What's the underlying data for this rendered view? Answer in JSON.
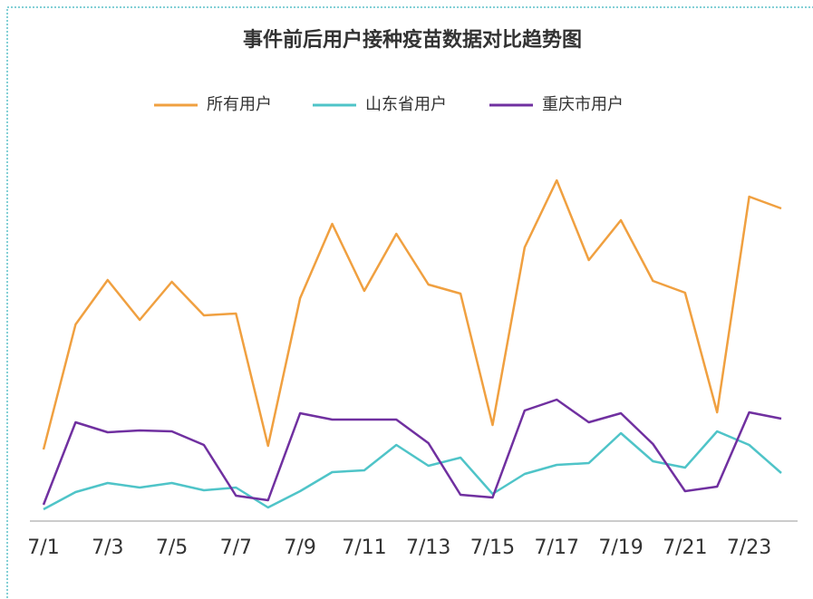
{
  "chart_data": {
    "type": "line",
    "title": "事件前后用户接种疫苗数据对比趋势图",
    "categories": [
      "7/1",
      null,
      "7/3",
      null,
      "7/5",
      null,
      "7/7",
      null,
      "7/9",
      null,
      "7/11",
      null,
      "7/13",
      null,
      "7/15",
      null,
      "7/17",
      null,
      "7/19",
      null,
      "7/21",
      null,
      "7/23",
      null
    ],
    "series": [
      {
        "name": "所有用户",
        "color": "#f0a040",
        "values": [
          79,
          217,
          266,
          222,
          264,
          227,
          229,
          83,
          246,
          328,
          254,
          317,
          261,
          251,
          106,
          302,
          376,
          288,
          332,
          265,
          252,
          120,
          358,
          345
        ]
      },
      {
        "name": "山东省用户",
        "color": "#4fc4c8",
        "values": [
          13,
          32,
          42,
          37,
          42,
          34,
          37,
          15,
          33,
          54,
          56,
          84,
          61,
          70,
          30,
          52,
          62,
          64,
          97,
          66,
          59,
          99,
          84,
          53
        ]
      },
      {
        "name": "重庆市用户",
        "color": "#7030a0",
        "values": [
          18,
          109,
          98,
          100,
          99,
          84,
          28,
          23,
          119,
          112,
          112,
          112,
          86,
          29,
          26,
          122,
          134,
          109,
          119,
          85,
          33,
          38,
          120,
          113
        ]
      }
    ],
    "ylim": [
      0,
      400
    ],
    "legend": "top"
  }
}
